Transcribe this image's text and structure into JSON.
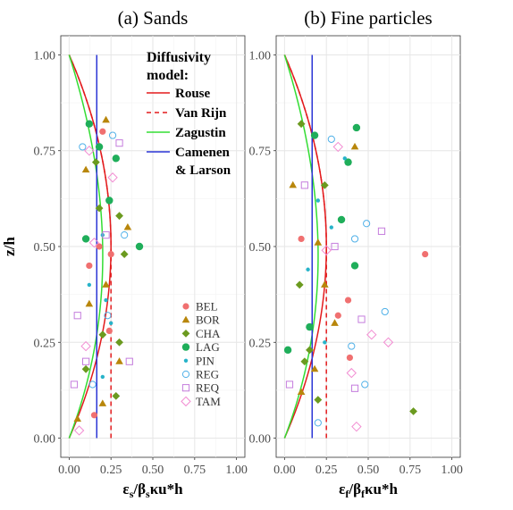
{
  "figure": {
    "ylabel": "z/h",
    "panels": [
      {
        "title": "(a) Sands",
        "xlabel_main": "ε",
        "xlabel_sub1": "s",
        "xlabel_mid": "/β",
        "xlabel_sub2": "s",
        "xlabel_tail": "κu*h"
      },
      {
        "title": "(b) Fine particles",
        "xlabel_main": "ε",
        "xlabel_sub1": "f",
        "xlabel_mid": "/β",
        "xlabel_sub2": "f",
        "xlabel_tail": "κu*h"
      }
    ],
    "xticks": [
      "0.00",
      "0.25",
      "0.50",
      "0.75",
      "1.00"
    ],
    "yticks": [
      "0.00",
      "0.25",
      "0.50",
      "0.75",
      "1.00"
    ]
  },
  "model_legend": {
    "title_line1": "Diffusivity",
    "title_line2": "model:",
    "items": [
      {
        "label": "Rouse",
        "color": "#e31a1c",
        "dash": "none"
      },
      {
        "label": "Van Rijn",
        "color": "#e31a1c",
        "dash": "5,4"
      },
      {
        "label": "Zagustin",
        "color": "#33dd33",
        "dash": "none"
      },
      {
        "label": "Camenen",
        "label2": "& Larson",
        "color": "#2b35d6",
        "dash": "none"
      }
    ]
  },
  "site_legend": [
    {
      "label": "BEL",
      "color": "#f07070",
      "shape": "circle-filled"
    },
    {
      "label": "BOR",
      "color": "#b8860b",
      "shape": "triangle-filled"
    },
    {
      "label": "CHA",
      "color": "#6b9a1f",
      "shape": "diamond-filled"
    },
    {
      "label": "LAG",
      "color": "#1fae5a",
      "shape": "circle-filled-large"
    },
    {
      "label": "PIN",
      "color": "#27b3c9",
      "shape": "dot"
    },
    {
      "label": "REG",
      "color": "#4fb0e8",
      "shape": "circle-open"
    },
    {
      "label": "REQ",
      "color": "#c57ddd",
      "shape": "square-open"
    },
    {
      "label": "TAM",
      "color": "#f28cd2",
      "shape": "diamond-open"
    }
  ],
  "chart_data": [
    {
      "type": "scatter",
      "title": "(a) Sands",
      "xlabel": "εs/βsκu*h",
      "ylabel": "z/h",
      "xlim": [
        -0.05,
        1.05
      ],
      "ylim": [
        -0.05,
        1.05
      ],
      "grid": true,
      "lines": [
        {
          "name": "Rouse",
          "shape": "parabola",
          "x_at_half": 0.25
        },
        {
          "name": "Van Rijn",
          "shape": "parabola-capped",
          "x_max": 0.25
        },
        {
          "name": "Zagustin",
          "shape": "zagustin",
          "x_max": 0.22
        },
        {
          "name": "Camenen & Larson",
          "shape": "constant",
          "x": 0.165
        }
      ],
      "series": [
        {
          "name": "BEL",
          "points": [
            [
              0.2,
              0.8
            ],
            [
              0.25,
              0.48
            ],
            [
              0.24,
              0.28
            ],
            [
              0.15,
              0.06
            ],
            [
              0.18,
              0.5
            ],
            [
              0.12,
              0.45
            ]
          ]
        },
        {
          "name": "BOR",
          "points": [
            [
              0.22,
              0.83
            ],
            [
              0.1,
              0.7
            ],
            [
              0.35,
              0.55
            ],
            [
              0.12,
              0.35
            ],
            [
              0.3,
              0.2
            ],
            [
              0.05,
              0.05
            ],
            [
              0.2,
              0.09
            ],
            [
              0.22,
              0.4
            ]
          ]
        },
        {
          "name": "CHA",
          "points": [
            [
              0.3,
              0.58
            ],
            [
              0.18,
              0.6
            ],
            [
              0.2,
              0.27
            ],
            [
              0.3,
              0.25
            ],
            [
              0.28,
              0.11
            ],
            [
              0.1,
              0.18
            ],
            [
              0.33,
              0.48
            ],
            [
              0.16,
              0.72
            ]
          ]
        },
        {
          "name": "LAG",
          "points": [
            [
              0.12,
              0.82
            ],
            [
              0.28,
              0.73
            ],
            [
              0.24,
              0.62
            ],
            [
              0.42,
              0.5
            ],
            [
              0.1,
              0.52
            ],
            [
              0.18,
              0.76
            ]
          ]
        },
        {
          "name": "PIN",
          "points": [
            [
              0.2,
              0.53
            ],
            [
              0.22,
              0.36
            ],
            [
              0.2,
              0.16
            ],
            [
              0.12,
              0.4
            ],
            [
              0.25,
              0.3
            ]
          ]
        },
        {
          "name": "REG",
          "points": [
            [
              0.26,
              0.79
            ],
            [
              0.14,
              0.14
            ],
            [
              0.08,
              0.76
            ],
            [
              0.33,
              0.53
            ],
            [
              0.23,
              0.32
            ]
          ]
        },
        {
          "name": "REQ",
          "points": [
            [
              0.3,
              0.77
            ],
            [
              0.1,
              0.2
            ],
            [
              0.05,
              0.32
            ],
            [
              0.22,
              0.53
            ],
            [
              0.03,
              0.14
            ],
            [
              0.36,
              0.2
            ]
          ]
        },
        {
          "name": "TAM",
          "points": [
            [
              0.12,
              0.75
            ],
            [
              0.15,
              0.51
            ],
            [
              0.06,
              0.02
            ],
            [
              0.26,
              0.68
            ],
            [
              0.1,
              0.24
            ]
          ]
        }
      ]
    },
    {
      "type": "scatter",
      "title": "(b) Fine particles",
      "xlabel": "εf/βfκu*h",
      "ylabel": "z/h",
      "xlim": [
        -0.05,
        1.05
      ],
      "ylim": [
        -0.05,
        1.05
      ],
      "grid": true,
      "lines": [
        {
          "name": "Rouse",
          "shape": "parabola",
          "x_at_half": 0.25
        },
        {
          "name": "Van Rijn",
          "shape": "parabola-capped",
          "x_max": 0.25
        },
        {
          "name": "Zagustin",
          "shape": "zagustin",
          "x_max": 0.22
        },
        {
          "name": "Camenen & Larson",
          "shape": "constant",
          "x": 0.165
        }
      ],
      "series": [
        {
          "name": "BEL",
          "points": [
            [
              0.84,
              0.48
            ],
            [
              0.38,
              0.36
            ],
            [
              0.32,
              0.32
            ],
            [
              0.39,
              0.21
            ],
            [
              0.1,
              0.52
            ]
          ]
        },
        {
          "name": "BOR",
          "points": [
            [
              0.42,
              0.76
            ],
            [
              0.05,
              0.66
            ],
            [
              0.2,
              0.51
            ],
            [
              0.3,
              0.3
            ],
            [
              0.18,
              0.18
            ],
            [
              0.1,
              0.12
            ],
            [
              0.24,
              0.4
            ]
          ]
        },
        {
          "name": "CHA",
          "points": [
            [
              0.77,
              0.07
            ],
            [
              0.09,
              0.4
            ],
            [
              0.15,
              0.23
            ],
            [
              0.2,
              0.1
            ],
            [
              0.1,
              0.82
            ],
            [
              0.24,
              0.66
            ],
            [
              0.12,
              0.2
            ]
          ]
        },
        {
          "name": "LAG",
          "points": [
            [
              0.43,
              0.81
            ],
            [
              0.38,
              0.72
            ],
            [
              0.02,
              0.23
            ],
            [
              0.34,
              0.57
            ],
            [
              0.42,
              0.45
            ],
            [
              0.18,
              0.79
            ],
            [
              0.15,
              0.29
            ]
          ]
        },
        {
          "name": "PIN",
          "points": [
            [
              0.28,
              0.55
            ],
            [
              0.2,
              0.62
            ],
            [
              0.24,
              0.25
            ],
            [
              0.36,
              0.73
            ],
            [
              0.14,
              0.44
            ]
          ]
        },
        {
          "name": "REG",
          "points": [
            [
              0.6,
              0.33
            ],
            [
              0.49,
              0.56
            ],
            [
              0.48,
              0.14
            ],
            [
              0.4,
              0.24
            ],
            [
              0.28,
              0.78
            ],
            [
              0.42,
              0.52
            ],
            [
              0.2,
              0.04
            ]
          ]
        },
        {
          "name": "REQ",
          "points": [
            [
              0.58,
              0.54
            ],
            [
              0.42,
              0.13
            ],
            [
              0.03,
              0.14
            ],
            [
              0.46,
              0.31
            ],
            [
              0.3,
              0.5
            ],
            [
              0.12,
              0.66
            ]
          ]
        },
        {
          "name": "TAM",
          "points": [
            [
              0.62,
              0.25
            ],
            [
              0.52,
              0.27
            ],
            [
              0.4,
              0.17
            ],
            [
              0.32,
              0.76
            ],
            [
              0.43,
              0.03
            ],
            [
              0.25,
              0.49
            ]
          ]
        }
      ]
    }
  ]
}
